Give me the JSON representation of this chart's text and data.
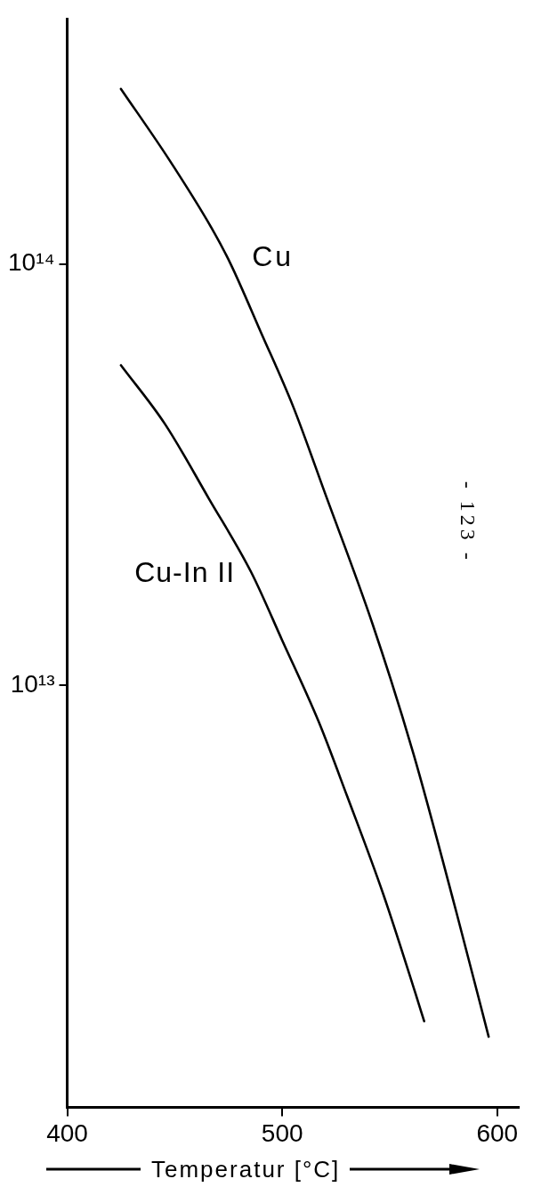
{
  "chart_data": {
    "type": "line",
    "xlabel": "Temperatur [°C]",
    "annotations": [
      "- 123 -"
    ],
    "series": [
      {
        "name": "Cu",
        "color": "#000000",
        "x": [
          425,
          447,
          467,
          476,
          490,
          505,
          520,
          542,
          561,
          581,
          596
        ],
        "values": [
          260000000000000.0,
          178000000000000.0,
          122000000000000.0,
          100000000000000.0,
          69000000000000.0,
          46000000000000.0,
          28500000000000.0,
          14000000000000.0,
          6900000000000.0,
          2900000000000.0,
          1470000000000.0
        ]
      },
      {
        "name": "Cu-In II",
        "color": "#000000",
        "x": [
          425,
          445.5,
          466,
          485.5,
          500,
          517,
          530,
          547,
          562,
          566
        ],
        "values": [
          57500000000000.0,
          41700000000000.0,
          27700000000000.0,
          18600000000000.0,
          12800000000000.0,
          8200000000000.0,
          5500000000000.0,
          3200000000000.0,
          1860000000000.0,
          1600000000000.0
        ]
      }
    ],
    "xlim": [
      400,
      610
    ],
    "ylim": [
      1000000000000.0,
      380000000000000.0
    ],
    "xticks": [
      400,
      500,
      600
    ],
    "yticks": [
      {
        "value": 100000000000000.0,
        "label": "10¹⁴"
      },
      {
        "value": 10000000000000.0,
        "label": "10¹³"
      }
    ],
    "log": "y",
    "grid": false,
    "legend": false
  }
}
